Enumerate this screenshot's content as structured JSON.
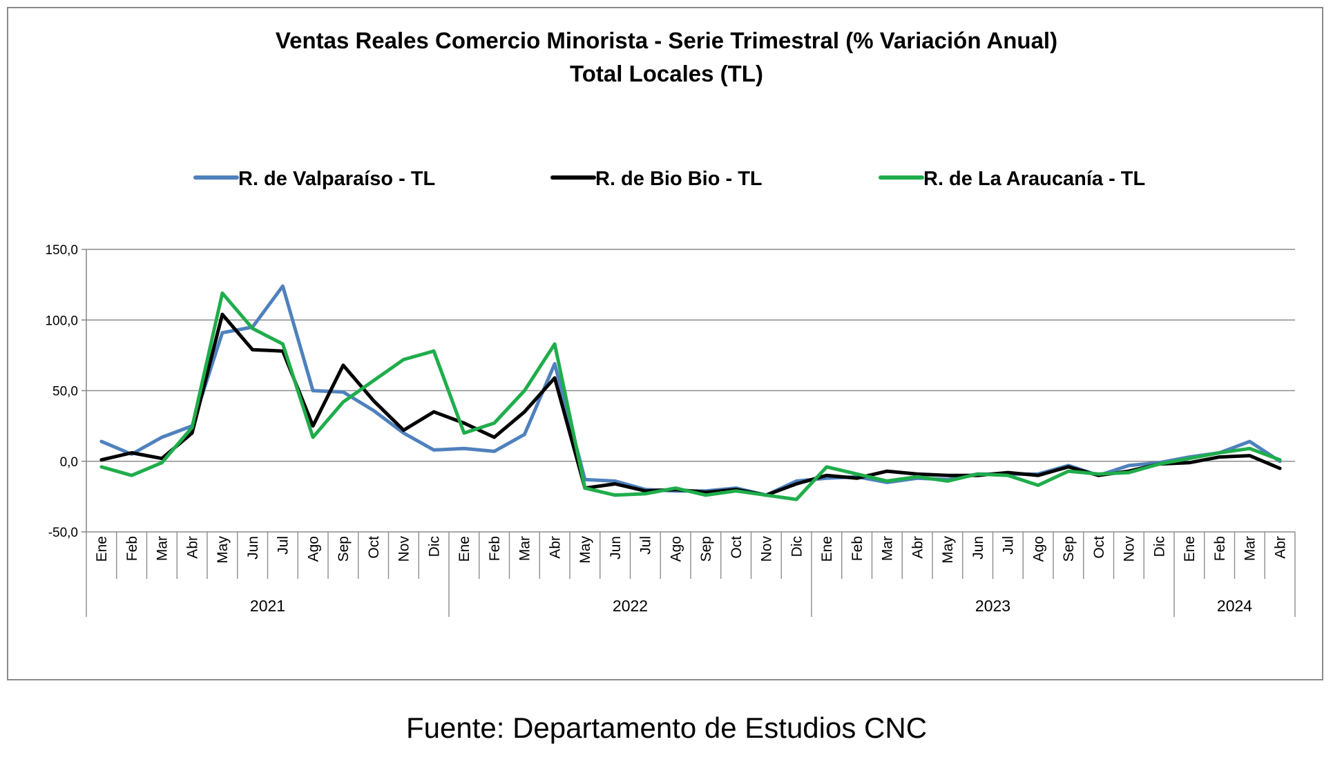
{
  "chart_data": {
    "type": "line",
    "title": "Ventas Reales Comercio Minorista - Serie Trimestral (% Variación Anual)",
    "subtitle": "Total Locales (TL)",
    "xlabel": "",
    "ylabel": "",
    "ylim": [
      -50,
      150
    ],
    "yticks": [
      "150,0",
      "100,0",
      "50,0",
      "0,0",
      "-50,0"
    ],
    "ytick_values": [
      150,
      100,
      50,
      0,
      -50
    ],
    "grid": true,
    "legend_position": "top",
    "categories": [
      "Ene",
      "Feb",
      "Mar",
      "Abr",
      "May",
      "Jun",
      "Jul",
      "Ago",
      "Sep",
      "Oct",
      "Nov",
      "Dic",
      "Ene",
      "Feb",
      "Mar",
      "Abr",
      "May",
      "Jun",
      "Jul",
      "Ago",
      "Sep",
      "Oct",
      "Nov",
      "Dic",
      "Ene",
      "Feb",
      "Mar",
      "Abr",
      "May",
      "Jun",
      "Jul",
      "Ago",
      "Sep",
      "Oct",
      "Nov",
      "Dic",
      "Ene",
      "Feb",
      "Mar",
      "Abr"
    ],
    "years": [
      {
        "label": "2021",
        "months": 12
      },
      {
        "label": "2022",
        "months": 12
      },
      {
        "label": "2023",
        "months": 12
      },
      {
        "label": "2024",
        "months": 4
      }
    ],
    "series": [
      {
        "name": "R. de Valparaíso - TL",
        "color": "#4f81bd",
        "values": [
          14,
          5,
          17,
          25,
          91,
          95,
          124,
          50,
          49,
          36,
          20,
          8,
          9,
          7,
          19,
          69,
          -13,
          -14,
          -20,
          -21,
          -21,
          -19,
          -24,
          -14,
          -12,
          -11,
          -15,
          -12,
          -13,
          -9,
          -9,
          -9,
          -3,
          -10,
          -3,
          -1,
          3,
          6,
          14,
          0
        ]
      },
      {
        "name": "R. de Bio Bio - TL",
        "color": "#000000",
        "values": [
          1,
          6,
          2,
          20,
          104,
          79,
          78,
          25,
          68,
          43,
          22,
          35,
          27,
          17,
          35,
          59,
          -19,
          -16,
          -21,
          -20,
          -22,
          -20,
          -24,
          -16,
          -10,
          -12,
          -7,
          -9,
          -10,
          -10,
          -8,
          -10,
          -4,
          -10,
          -7,
          -2,
          -1,
          3,
          4,
          -5
        ]
      },
      {
        "name": "R. de La Araucanía - TL",
        "color": "#1fad4b",
        "values": [
          -4,
          -10,
          -1,
          24,
          119,
          94,
          83,
          17,
          42,
          57,
          72,
          78,
          20,
          27,
          50,
          83,
          -19,
          -24,
          -23,
          -19,
          -24,
          -21,
          -24,
          -27,
          -4,
          -9,
          -14,
          -11,
          -14,
          -9,
          -10,
          -17,
          -7,
          -9,
          -8,
          -2,
          2,
          6,
          9,
          1
        ]
      }
    ]
  },
  "footer": {
    "source": "Fuente: Departamento de Estudios CNC"
  }
}
